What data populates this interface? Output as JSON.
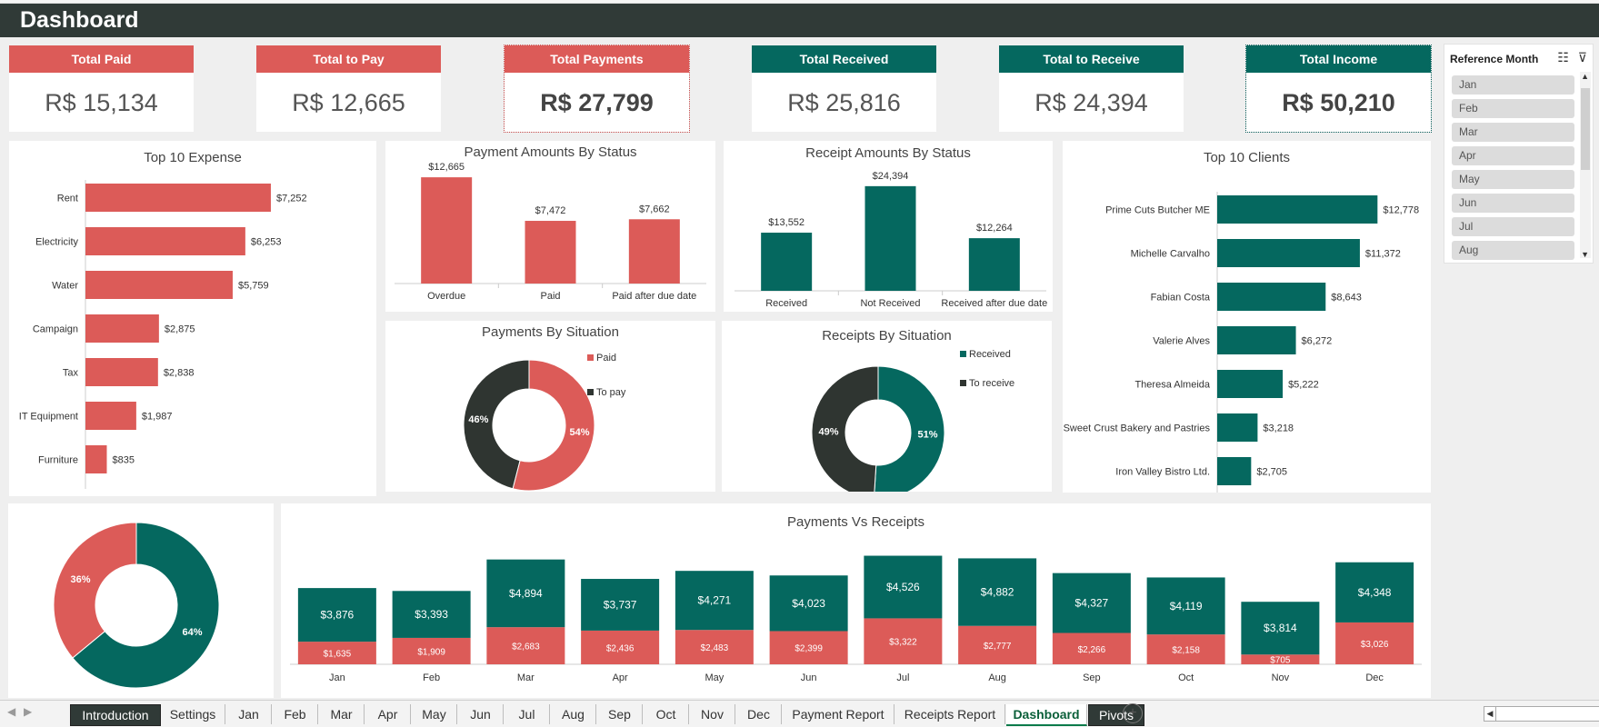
{
  "title": "Dashboard",
  "kpis": [
    {
      "label": "Total Paid",
      "value": "R$ 15,134"
    },
    {
      "label": "Total to Pay",
      "value": "R$ 12,665"
    },
    {
      "label": "Total Payments",
      "value": "R$ 27,799"
    },
    {
      "label": "Total Received",
      "value": "R$ 25,816"
    },
    {
      "label": "Total to Receive",
      "value": "R$ 24,394"
    },
    {
      "label": "Total Income",
      "value": "R$ 50,210"
    }
  ],
  "slicer": {
    "title": "Reference Month",
    "items": [
      "Jan",
      "Feb",
      "Mar",
      "Apr",
      "May",
      "Jun",
      "Jul",
      "Aug"
    ]
  },
  "colors": {
    "red": "#dc5b58",
    "teal": "#05685f",
    "dark": "#2f3531"
  },
  "chart_data": [
    {
      "id": "top10expense",
      "type": "bar",
      "orientation": "horizontal",
      "title": "Top 10 Expense",
      "categories": [
        "Rent",
        "Electricity",
        "Water",
        "Campaign",
        "Tax",
        "IT Equipment",
        "Furniture"
      ],
      "values": [
        7252,
        6253,
        5759,
        2875,
        2838,
        1987,
        835
      ],
      "labels": [
        "$7,252",
        "$6,253",
        "$5,759",
        "$2,875",
        "$2,838",
        "$1,987",
        "$835"
      ]
    },
    {
      "id": "paymentstatus",
      "type": "bar",
      "title": "Payment Amounts By Status",
      "categories": [
        "Overdue",
        "Paid",
        "Paid after due date"
      ],
      "values": [
        12665,
        7472,
        7662
      ],
      "labels": [
        "$12,665",
        "$7,472",
        "$7,662"
      ]
    },
    {
      "id": "receiptstatus",
      "type": "bar",
      "title": "Receipt Amounts By Status",
      "categories": [
        "Received",
        "Not Received",
        "Received after due date"
      ],
      "values": [
        13552,
        24394,
        12264
      ],
      "labels": [
        "$13,552",
        "$24,394",
        "$12,264"
      ]
    },
    {
      "id": "top10clients",
      "type": "bar",
      "orientation": "horizontal",
      "title": "Top 10 Clients",
      "categories": [
        "Prime Cuts Butcher ME",
        "Michelle Carvalho",
        "Fabian Costa",
        "Valerie Alves",
        "Theresa Almeida",
        "Sweet Crust Bakery and Pastries",
        "Iron Valley Bistro Ltd."
      ],
      "values": [
        12778,
        11372,
        8643,
        6272,
        5222,
        3218,
        2705
      ],
      "labels": [
        "$12,778",
        "$11,372",
        "$8,643",
        "$6,272",
        "$5,222",
        "$3,218",
        "$2,705"
      ]
    },
    {
      "id": "paysituation",
      "type": "pie",
      "title": "Payments By Situation",
      "categories": [
        "Paid",
        "To pay"
      ],
      "values": [
        54,
        46
      ],
      "labels": [
        "54%",
        "46%"
      ]
    },
    {
      "id": "recsituation",
      "type": "pie",
      "title": "Receipts By Situation",
      "categories": [
        "Received",
        "To receive"
      ],
      "values": [
        51,
        49
      ],
      "labels": [
        "51%",
        "49%"
      ]
    },
    {
      "id": "income",
      "type": "pie",
      "title": "",
      "categories": [
        "",
        ""
      ],
      "values": [
        64,
        36
      ],
      "labels": [
        "64%",
        "36%"
      ]
    },
    {
      "id": "payvsrec",
      "type": "bar",
      "stacked": true,
      "title": "Payments Vs Receipts",
      "categories": [
        "Jan",
        "Feb",
        "Mar",
        "Apr",
        "May",
        "Jun",
        "Jul",
        "Aug",
        "Sep",
        "Oct",
        "Nov",
        "Dec"
      ],
      "series": [
        {
          "name": "Payments",
          "values": [
            1635,
            1909,
            2683,
            2436,
            2483,
            2399,
            3322,
            2777,
            2266,
            2158,
            705,
            3026
          ],
          "labels": [
            "$1,635",
            "$1,909",
            "$2,683",
            "$2,436",
            "$2,483",
            "$2,399",
            "$3,322",
            "$2,777",
            "$2,266",
            "$2,158",
            "$705",
            "$3,026"
          ]
        },
        {
          "name": "Receipts",
          "values": [
            3876,
            3393,
            4894,
            3737,
            4271,
            4023,
            4526,
            4882,
            4327,
            4119,
            3814,
            4348
          ],
          "labels": [
            "$3,876",
            "$3,393",
            "$4,894",
            "$3,737",
            "$4,271",
            "$4,023",
            "$4,526",
            "$4,882",
            "$4,327",
            "$4,119",
            "$3,814",
            "$4,348"
          ]
        }
      ]
    }
  ],
  "tabs": [
    "Introduction",
    "Settings",
    "Jan",
    "Feb",
    "Mar",
    "Apr",
    "May",
    "Jun",
    "Jul",
    "Aug",
    "Sep",
    "Oct",
    "Nov",
    "Dec",
    "Payment Report",
    "Receipts Report",
    "Dashboard",
    "Pivots"
  ],
  "active_tab": "Dashboard",
  "add_sheet": "+"
}
